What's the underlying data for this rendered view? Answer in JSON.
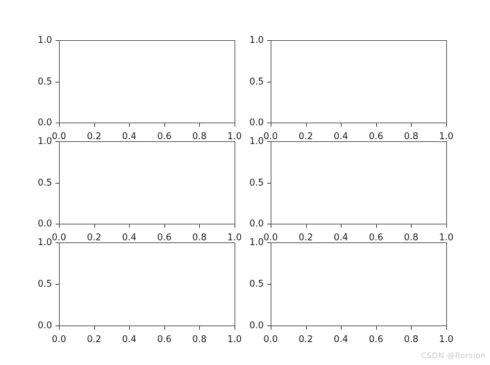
{
  "figure": {
    "background": "#ffffff",
    "spine_color": "#4a4a4a",
    "tick_color": "#333333",
    "tick_label_color": "#1a1a1a",
    "watermark": "CSDN @Rorsion",
    "watermark_color": "#c9c9c9"
  },
  "chart_data": [
    {
      "id": "subplot-row1-col1",
      "type": "line",
      "title": "",
      "series": [],
      "xlim": [
        0.0,
        1.0
      ],
      "ylim": [
        0.0,
        1.0
      ],
      "xtick_values": [
        0.0,
        0.2,
        0.4,
        0.6,
        0.8,
        1.0
      ],
      "xtick_labels": [
        "0.0",
        "0.2",
        "0.4",
        "0.6",
        "0.8",
        "1.0"
      ],
      "ytick_values": [
        0.0,
        0.5,
        1.0
      ],
      "ytick_labels": [
        "0.0",
        "0.5",
        "1.0"
      ],
      "grid": false,
      "legend": null
    },
    {
      "id": "subplot-row1-col2",
      "type": "line",
      "title": "",
      "series": [],
      "xlim": [
        0.0,
        1.0
      ],
      "ylim": [
        0.0,
        1.0
      ],
      "xtick_values": [
        0.0,
        0.2,
        0.4,
        0.6,
        0.8,
        1.0
      ],
      "xtick_labels": [
        "0.0",
        "0.2",
        "0.4",
        "0.6",
        "0.8",
        "1.0"
      ],
      "ytick_values": [
        0.0,
        0.5,
        1.0
      ],
      "ytick_labels": [
        "0.0",
        "0.5",
        "1.0"
      ],
      "grid": false,
      "legend": null
    },
    {
      "id": "subplot-row2-col1",
      "type": "line",
      "title": "",
      "series": [],
      "xlim": [
        0.0,
        1.0
      ],
      "ylim": [
        0.0,
        1.0
      ],
      "xtick_values": [
        0.0,
        0.2,
        0.4,
        0.6,
        0.8,
        1.0
      ],
      "xtick_labels": [
        "0.0",
        "0.2",
        "0.4",
        "0.6",
        "0.8",
        "1.0"
      ],
      "ytick_values": [
        0.0,
        0.5,
        1.0
      ],
      "ytick_labels": [
        "0.0",
        "0.5",
        "1.0"
      ],
      "grid": false,
      "legend": null
    },
    {
      "id": "subplot-row2-col2",
      "type": "line",
      "title": "",
      "series": [],
      "xlim": [
        0.0,
        1.0
      ],
      "ylim": [
        0.0,
        1.0
      ],
      "xtick_values": [
        0.0,
        0.2,
        0.4,
        0.6,
        0.8,
        1.0
      ],
      "xtick_labels": [
        "0.0",
        "0.2",
        "0.4",
        "0.6",
        "0.8",
        "1.0"
      ],
      "ytick_values": [
        0.0,
        0.5,
        1.0
      ],
      "ytick_labels": [
        "0.0",
        "0.5",
        "1.0"
      ],
      "grid": false,
      "legend": null
    },
    {
      "id": "subplot-row3-col1",
      "type": "line",
      "title": "",
      "series": [],
      "xlim": [
        0.0,
        1.0
      ],
      "ylim": [
        0.0,
        1.0
      ],
      "xtick_values": [
        0.0,
        0.2,
        0.4,
        0.6,
        0.8,
        1.0
      ],
      "xtick_labels": [
        "0.0",
        "0.2",
        "0.4",
        "0.6",
        "0.8",
        "1.0"
      ],
      "ytick_values": [
        0.0,
        0.5,
        1.0
      ],
      "ytick_labels": [
        "0.0",
        "0.5",
        "1.0"
      ],
      "grid": false,
      "legend": null
    },
    {
      "id": "subplot-row3-col2",
      "type": "line",
      "title": "",
      "series": [],
      "xlim": [
        0.0,
        1.0
      ],
      "ylim": [
        0.0,
        1.0
      ],
      "xtick_values": [
        0.0,
        0.2,
        0.4,
        0.6,
        0.8,
        1.0
      ],
      "xtick_labels": [
        "0.0",
        "0.2",
        "0.4",
        "0.6",
        "0.8",
        "1.0"
      ],
      "ytick_values": [
        0.0,
        0.5,
        1.0
      ],
      "ytick_labels": [
        "0.0",
        "0.5",
        "1.0"
      ],
      "grid": false,
      "legend": null
    }
  ]
}
